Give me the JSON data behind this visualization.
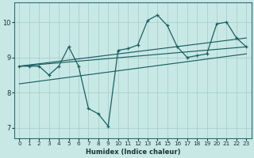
{
  "xlabel": "Humidex (Indice chaleur)",
  "ylabel": "",
  "xlim": [
    -0.5,
    23.5
  ],
  "ylim": [
    6.7,
    10.55
  ],
  "yticks": [
    7,
    8,
    9,
    10
  ],
  "xticks": [
    0,
    1,
    2,
    3,
    4,
    5,
    6,
    7,
    8,
    9,
    10,
    11,
    12,
    13,
    14,
    15,
    16,
    17,
    18,
    19,
    20,
    21,
    22,
    23
  ],
  "background_color": "#c8e8e6",
  "grid_color": "#a8d0ce",
  "line_color": "#1a6060",
  "lines": [
    {
      "x": [
        0,
        1,
        2,
        3,
        4,
        5,
        6,
        7,
        8,
        9,
        10,
        11,
        12,
        13,
        14,
        15,
        16,
        17,
        18,
        19,
        20,
        21,
        22,
        23
      ],
      "y": [
        8.75,
        8.75,
        8.75,
        8.5,
        8.75,
        9.3,
        8.75,
        7.55,
        7.4,
        7.05,
        9.2,
        9.25,
        9.35,
        10.05,
        10.2,
        9.9,
        9.3,
        9.0,
        9.05,
        9.1,
        9.95,
        10.0,
        9.55,
        9.3
      ]
    },
    {
      "x": [
        0,
        23
      ],
      "y": [
        8.75,
        9.55
      ]
    },
    {
      "x": [
        0,
        23
      ],
      "y": [
        8.75,
        9.3
      ]
    },
    {
      "x": [
        0,
        23
      ],
      "y": [
        8.25,
        9.1
      ]
    }
  ]
}
